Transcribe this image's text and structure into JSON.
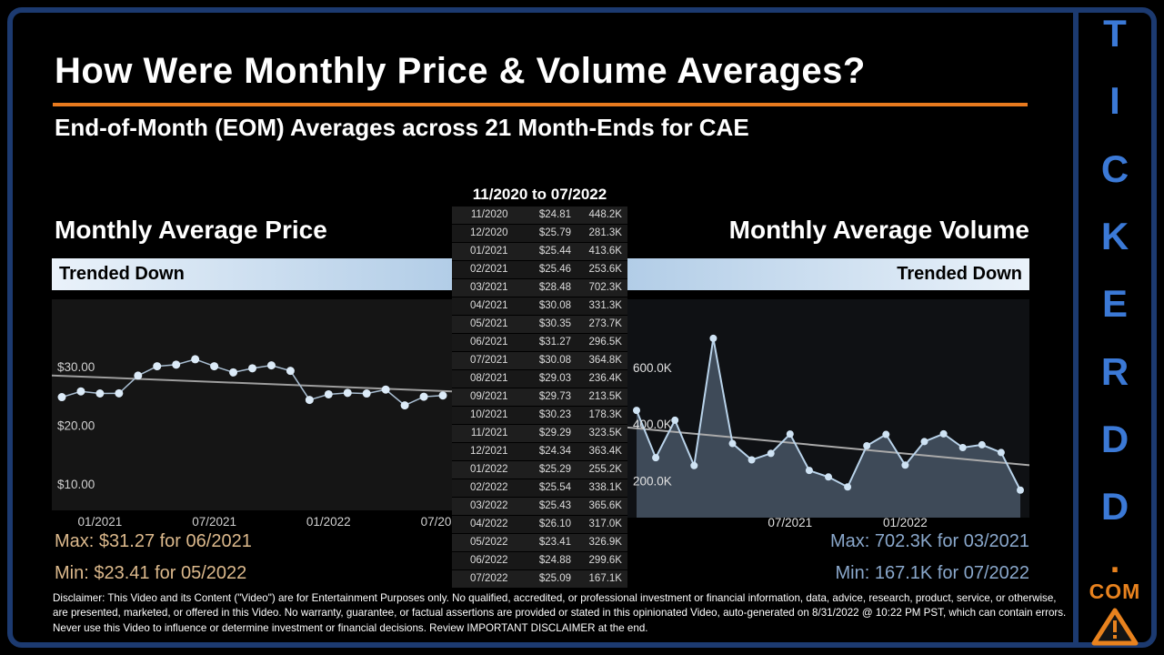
{
  "page": {
    "title": "How Were Monthly Price & Volume Averages?",
    "subtitle": "End-of-Month (EOM) Averages across 21 Month-Ends for CAE",
    "accent_orange": "#e87a1e",
    "disclaimer": "Disclaimer: This Video and its Content (\"Video\") are for Entertainment Purposes only. No qualified, accredited, or professional investment or financial information, data, advice, research, product, service, or otherwise, are presented, marketed, or offered in this Video. No warranty, guarantee, or factual assertions are provided or stated in this opinionated Video, auto-generated on 8/31/2022 @ 10:22 PM PST, which can contain errors. Never use this Video to influence or determine investment or financial decisions. Review IMPORTANT DISCLAIMER at the end."
  },
  "brand": {
    "letters": [
      "T",
      "I",
      "C",
      "K",
      "E",
      "R",
      "D",
      "D"
    ],
    "dot": ".",
    "com": "COM",
    "blue": "#3b79d6",
    "orange": "#e8821e"
  },
  "table": {
    "header": "11/2020 to 07/2022",
    "columns": [
      "month",
      "avg_price",
      "avg_volume"
    ],
    "rows": [
      [
        "11/2020",
        "$24.81",
        "448.2K"
      ],
      [
        "12/2020",
        "$25.79",
        "281.3K"
      ],
      [
        "01/2021",
        "$25.44",
        "413.6K"
      ],
      [
        "02/2021",
        "$25.46",
        "253.6K"
      ],
      [
        "03/2021",
        "$28.48",
        "702.3K"
      ],
      [
        "04/2021",
        "$30.08",
        "331.3K"
      ],
      [
        "05/2021",
        "$30.35",
        "273.7K"
      ],
      [
        "06/2021",
        "$31.27",
        "296.5K"
      ],
      [
        "07/2021",
        "$30.08",
        "364.8K"
      ],
      [
        "08/2021",
        "$29.03",
        "236.4K"
      ],
      [
        "09/2021",
        "$29.73",
        "213.5K"
      ],
      [
        "10/2021",
        "$30.23",
        "178.3K"
      ],
      [
        "11/2021",
        "$29.29",
        "323.5K"
      ],
      [
        "12/2021",
        "$24.34",
        "363.4K"
      ],
      [
        "01/2022",
        "$25.29",
        "255.2K"
      ],
      [
        "02/2022",
        "$25.54",
        "338.1K"
      ],
      [
        "03/2022",
        "$25.43",
        "365.6K"
      ],
      [
        "04/2022",
        "$26.10",
        "317.0K"
      ],
      [
        "05/2022",
        "$23.41",
        "326.9K"
      ],
      [
        "06/2022",
        "$24.88",
        "299.6K"
      ],
      [
        "07/2022",
        "$25.09",
        "167.1K"
      ]
    ]
  },
  "price_panel": {
    "heading": "Monthly Average Price",
    "trend_label": "Trended Down",
    "max_label": "Max: $31.27 for 06/2021",
    "min_label": "Min: $23.41 for 05/2022"
  },
  "volume_panel": {
    "heading": "Monthly Average Volume",
    "trend_label": "Trended Down",
    "max_label": "Max: 702.3K for 03/2021",
    "min_label": "Min: 167.1K for 07/2022"
  },
  "chart_data": [
    {
      "id": "price",
      "type": "line",
      "title": "Monthly Average Price",
      "categories": [
        "11/2020",
        "12/2020",
        "01/2021",
        "02/2021",
        "03/2021",
        "04/2021",
        "05/2021",
        "06/2021",
        "07/2021",
        "08/2021",
        "09/2021",
        "10/2021",
        "11/2021",
        "12/2021",
        "01/2022",
        "02/2022",
        "03/2022",
        "04/2022",
        "05/2022",
        "06/2022",
        "07/2022"
      ],
      "values": [
        24.81,
        25.79,
        25.44,
        25.46,
        28.48,
        30.08,
        30.35,
        31.27,
        30.08,
        29.03,
        29.73,
        30.23,
        29.29,
        24.34,
        25.29,
        25.54,
        25.43,
        26.1,
        23.41,
        24.88,
        25.09
      ],
      "ylim": [
        5.5,
        41.5
      ],
      "yticks": [
        {
          "v": 30,
          "label": "$30.00"
        },
        {
          "v": 20,
          "label": "$20.00"
        },
        {
          "v": 10,
          "label": "$10.00"
        }
      ],
      "xticks": [
        {
          "i": 2,
          "label": "01/2021"
        },
        {
          "i": 8,
          "label": "07/2021"
        },
        {
          "i": 14,
          "label": "01/2022"
        },
        {
          "i": 20,
          "label": "07/2022"
        }
      ],
      "trendline": true,
      "trend_direction": "down",
      "max": {
        "value": 31.27,
        "at": "06/2021"
      },
      "min": {
        "value": 23.41,
        "at": "05/2022"
      },
      "colors": {
        "bg": "#151515",
        "line": "#a9bed2",
        "marker": "#dcebf8",
        "trend": "#9e9e9e",
        "tick": "#d0d0d0"
      }
    },
    {
      "id": "volume",
      "type": "area",
      "title": "Monthly Average Volume",
      "unit": "K",
      "categories": [
        "11/2020",
        "12/2020",
        "01/2021",
        "02/2021",
        "03/2021",
        "04/2021",
        "05/2021",
        "06/2021",
        "07/2021",
        "08/2021",
        "09/2021",
        "10/2021",
        "11/2021",
        "12/2021",
        "01/2022",
        "02/2022",
        "03/2022",
        "04/2022",
        "05/2022",
        "06/2022",
        "07/2022"
      ],
      "values": [
        448.2,
        281.3,
        413.6,
        253.6,
        702.3,
        331.3,
        273.7,
        296.5,
        364.8,
        236.4,
        213.5,
        178.3,
        323.5,
        363.4,
        255.2,
        338.1,
        365.6,
        317.0,
        326.9,
        299.6,
        167.1
      ],
      "ylim": [
        70,
        840
      ],
      "yticks": [
        {
          "v": 600,
          "label": "600.0K"
        },
        {
          "v": 400,
          "label": "400.0K"
        },
        {
          "v": 200,
          "label": "200.0K"
        }
      ],
      "xticks": [
        {
          "i": 8,
          "label": "07/2021"
        },
        {
          "i": 14,
          "label": "01/2022"
        }
      ],
      "trendline": true,
      "trend_direction": "down",
      "max": {
        "value": 702.3,
        "at": "03/2021"
      },
      "min": {
        "value": 167.1,
        "at": "07/2022"
      },
      "colors": {
        "bg": "#0f1114",
        "fill": "rgba(110,132,155,0.5)",
        "line": "#b9d3ea",
        "marker": "#cfe3f4",
        "trend": "#aaaaaa",
        "tick": "#e0e0e0"
      }
    }
  ]
}
